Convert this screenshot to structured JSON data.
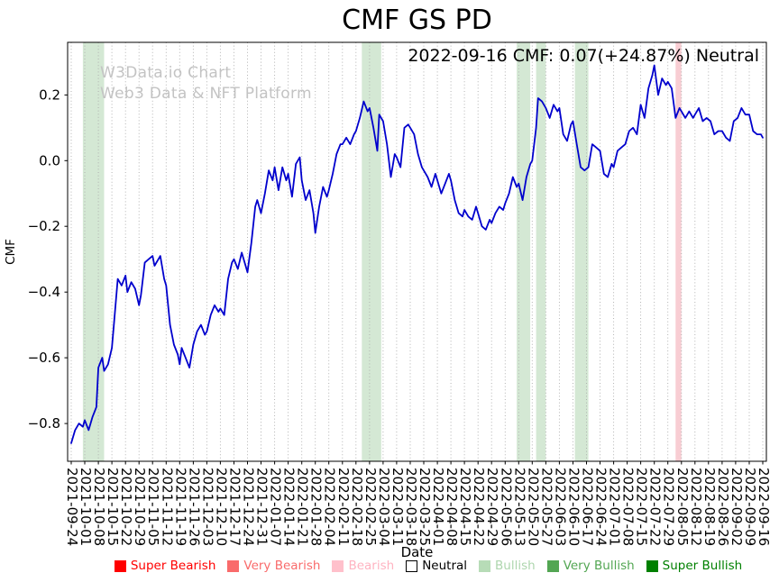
{
  "title": "CMF GS PD",
  "annotation": {
    "text": "2022-09-16 CMF: 0.07(+24.87%) Neutral"
  },
  "watermark": {
    "line1": "W3Data.io Chart",
    "line2": "Web3 Data & NFT Platform"
  },
  "chart_data": {
    "type": "line",
    "title": "CMF GS PD",
    "xlabel": "Date",
    "ylabel": "CMF",
    "x_start": "2021-09-24",
    "x_end": "2022-09-16",
    "x_range_days": 357,
    "x_tick_interval_days": 7,
    "ylim": [
      -0.915,
      0.36
    ],
    "yticks": [
      0.2,
      0.0,
      -0.2,
      -0.4,
      -0.6,
      -0.8
    ],
    "ytick_labels": [
      "0.2",
      "0.0",
      "−0.2",
      "−0.4",
      "−0.6",
      "−0.8"
    ],
    "grid": {
      "vertical": true,
      "style": "dotted",
      "color": "#ababab"
    },
    "line": {
      "name": "CMF",
      "color": "#0000cd",
      "width": 1.8
    },
    "x_tick_dates": [
      "2021-09-24",
      "2021-10-01",
      "2021-10-08",
      "2021-10-15",
      "2021-10-22",
      "2021-10-29",
      "2021-11-05",
      "2021-11-12",
      "2021-11-19",
      "2021-11-26",
      "2021-12-03",
      "2021-12-10",
      "2021-12-17",
      "2021-12-24",
      "2021-12-31",
      "2022-01-07",
      "2022-01-14",
      "2022-01-21",
      "2022-01-28",
      "2022-02-04",
      "2022-02-11",
      "2022-02-18",
      "2022-02-25",
      "2022-03-04",
      "2022-03-11",
      "2022-03-18",
      "2022-03-25",
      "2022-04-01",
      "2022-04-08",
      "2022-04-15",
      "2022-04-22",
      "2022-04-29",
      "2022-05-06",
      "2022-05-13",
      "2022-05-20",
      "2022-05-27",
      "2022-06-03",
      "2022-06-10",
      "2022-06-17",
      "2022-06-24",
      "2022-07-01",
      "2022-07-08",
      "2022-07-15",
      "2022-07-22",
      "2022-07-29",
      "2022-08-05",
      "2022-08-12",
      "2022-08-19",
      "2022-08-26",
      "2022-09-02",
      "2022-09-09",
      "2022-09-16"
    ],
    "points": [
      [
        0,
        -0.86
      ],
      [
        2,
        -0.82
      ],
      [
        4,
        -0.8
      ],
      [
        6,
        -0.81
      ],
      [
        7,
        -0.79
      ],
      [
        9,
        -0.82
      ],
      [
        11,
        -0.78
      ],
      [
        13,
        -0.75
      ],
      [
        14,
        -0.63
      ],
      [
        16,
        -0.6
      ],
      [
        17,
        -0.64
      ],
      [
        19,
        -0.62
      ],
      [
        21,
        -0.57
      ],
      [
        22,
        -0.5
      ],
      [
        24,
        -0.36
      ],
      [
        26,
        -0.38
      ],
      [
        28,
        -0.35
      ],
      [
        29,
        -0.4
      ],
      [
        31,
        -0.37
      ],
      [
        33,
        -0.39
      ],
      [
        35,
        -0.44
      ],
      [
        36,
        -0.41
      ],
      [
        38,
        -0.31
      ],
      [
        40,
        -0.3
      ],
      [
        42,
        -0.29
      ],
      [
        43,
        -0.32
      ],
      [
        45,
        -0.3
      ],
      [
        46,
        -0.29
      ],
      [
        48,
        -0.36
      ],
      [
        49,
        -0.38
      ],
      [
        51,
        -0.5
      ],
      [
        53,
        -0.56
      ],
      [
        55,
        -0.59
      ],
      [
        56,
        -0.62
      ],
      [
        57,
        -0.57
      ],
      [
        59,
        -0.6
      ],
      [
        61,
        -0.63
      ],
      [
        63,
        -0.56
      ],
      [
        65,
        -0.52
      ],
      [
        67,
        -0.5
      ],
      [
        69,
        -0.53
      ],
      [
        70,
        -0.52
      ],
      [
        72,
        -0.47
      ],
      [
        74,
        -0.44
      ],
      [
        76,
        -0.46
      ],
      [
        77,
        -0.45
      ],
      [
        79,
        -0.47
      ],
      [
        81,
        -0.36
      ],
      [
        83,
        -0.31
      ],
      [
        84,
        -0.3
      ],
      [
        86,
        -0.33
      ],
      [
        88,
        -0.28
      ],
      [
        90,
        -0.32
      ],
      [
        91,
        -0.34
      ],
      [
        93,
        -0.25
      ],
      [
        95,
        -0.14
      ],
      [
        96,
        -0.12
      ],
      [
        98,
        -0.16
      ],
      [
        100,
        -0.1
      ],
      [
        102,
        -0.03
      ],
      [
        104,
        -0.06
      ],
      [
        105,
        -0.02
      ],
      [
        107,
        -0.09
      ],
      [
        109,
        -0.02
      ],
      [
        111,
        -0.06
      ],
      [
        112,
        -0.04
      ],
      [
        114,
        -0.11
      ],
      [
        116,
        -0.01
      ],
      [
        118,
        0.01
      ],
      [
        119,
        -0.06
      ],
      [
        121,
        -0.12
      ],
      [
        123,
        -0.09
      ],
      [
        125,
        -0.16
      ],
      [
        126,
        -0.22
      ],
      [
        128,
        -0.14
      ],
      [
        130,
        -0.08
      ],
      [
        132,
        -0.11
      ],
      [
        133,
        -0.09
      ],
      [
        135,
        -0.04
      ],
      [
        137,
        0.02
      ],
      [
        139,
        0.05
      ],
      [
        140,
        0.05
      ],
      [
        142,
        0.07
      ],
      [
        144,
        0.05
      ],
      [
        146,
        0.08
      ],
      [
        147,
        0.09
      ],
      [
        149,
        0.13
      ],
      [
        151,
        0.18
      ],
      [
        153,
        0.15
      ],
      [
        154,
        0.16
      ],
      [
        156,
        0.1
      ],
      [
        158,
        0.03
      ],
      [
        159,
        0.14
      ],
      [
        161,
        0.12
      ],
      [
        163,
        0.05
      ],
      [
        165,
        -0.05
      ],
      [
        167,
        0.02
      ],
      [
        168,
        0.01
      ],
      [
        170,
        -0.02
      ],
      [
        172,
        0.1
      ],
      [
        174,
        0.11
      ],
      [
        175,
        0.1
      ],
      [
        177,
        0.08
      ],
      [
        179,
        0.02
      ],
      [
        181,
        -0.02
      ],
      [
        182,
        -0.03
      ],
      [
        184,
        -0.05
      ],
      [
        186,
        -0.08
      ],
      [
        188,
        -0.04
      ],
      [
        189,
        -0.06
      ],
      [
        191,
        -0.1
      ],
      [
        193,
        -0.07
      ],
      [
        195,
        -0.04
      ],
      [
        196,
        -0.06
      ],
      [
        198,
        -0.12
      ],
      [
        200,
        -0.16
      ],
      [
        202,
        -0.17
      ],
      [
        203,
        -0.15
      ],
      [
        205,
        -0.17
      ],
      [
        207,
        -0.18
      ],
      [
        209,
        -0.14
      ],
      [
        210,
        -0.16
      ],
      [
        212,
        -0.2
      ],
      [
        214,
        -0.21
      ],
      [
        216,
        -0.18
      ],
      [
        217,
        -0.19
      ],
      [
        219,
        -0.16
      ],
      [
        221,
        -0.14
      ],
      [
        223,
        -0.15
      ],
      [
        224,
        -0.13
      ],
      [
        226,
        -0.1
      ],
      [
        228,
        -0.05
      ],
      [
        230,
        -0.08
      ],
      [
        231,
        -0.07
      ],
      [
        233,
        -0.12
      ],
      [
        235,
        -0.05
      ],
      [
        237,
        -0.01
      ],
      [
        238,
        0
      ],
      [
        240,
        0.1
      ],
      [
        241,
        0.19
      ],
      [
        243,
        0.18
      ],
      [
        245,
        0.16
      ],
      [
        247,
        0.13
      ],
      [
        249,
        0.17
      ],
      [
        251,
        0.15
      ],
      [
        252,
        0.16
      ],
      [
        254,
        0.08
      ],
      [
        256,
        0.06
      ],
      [
        258,
        0.11
      ],
      [
        259,
        0.12
      ],
      [
        261,
        0.05
      ],
      [
        263,
        -0.02
      ],
      [
        265,
        -0.03
      ],
      [
        267,
        -0.02
      ],
      [
        269,
        0.05
      ],
      [
        271,
        0.04
      ],
      [
        273,
        0.03
      ],
      [
        275,
        -0.04
      ],
      [
        277,
        -0.05
      ],
      [
        279,
        -0.01
      ],
      [
        280,
        -0.02
      ],
      [
        282,
        0.03
      ],
      [
        284,
        0.04
      ],
      [
        286,
        0.05
      ],
      [
        288,
        0.09
      ],
      [
        290,
        0.1
      ],
      [
        292,
        0.08
      ],
      [
        294,
        0.17
      ],
      [
        296,
        0.13
      ],
      [
        298,
        0.22
      ],
      [
        300,
        0.26
      ],
      [
        301,
        0.29
      ],
      [
        303,
        0.2
      ],
      [
        305,
        0.25
      ],
      [
        307,
        0.23
      ],
      [
        308,
        0.24
      ],
      [
        310,
        0.22
      ],
      [
        312,
        0.13
      ],
      [
        314,
        0.16
      ],
      [
        315,
        0.15
      ],
      [
        317,
        0.13
      ],
      [
        319,
        0.15
      ],
      [
        321,
        0.13
      ],
      [
        322,
        0.14
      ],
      [
        324,
        0.16
      ],
      [
        326,
        0.12
      ],
      [
        328,
        0.13
      ],
      [
        330,
        0.12
      ],
      [
        332,
        0.08
      ],
      [
        334,
        0.09
      ],
      [
        336,
        0.09
      ],
      [
        338,
        0.07
      ],
      [
        340,
        0.06
      ],
      [
        342,
        0.12
      ],
      [
        344,
        0.13
      ],
      [
        346,
        0.16
      ],
      [
        348,
        0.14
      ],
      [
        350,
        0.14
      ],
      [
        352,
        0.09
      ],
      [
        354,
        0.08
      ],
      [
        356,
        0.08
      ],
      [
        357,
        0.07
      ]
    ],
    "bands": [
      {
        "start_day": 6,
        "end_day": 17,
        "start_date": "2021-09-30",
        "end_date": "2021-10-11",
        "sentiment": "Bullish",
        "color": "#d4e8d4"
      },
      {
        "start_day": 150,
        "end_day": 160,
        "start_date": "2022-02-21",
        "end_date": "2022-03-03",
        "sentiment": "Bullish",
        "color": "#d4e8d4"
      },
      {
        "start_day": 230,
        "end_day": 237,
        "start_date": "2022-05-12",
        "end_date": "2022-05-19",
        "sentiment": "Bullish",
        "color": "#d4e8d4"
      },
      {
        "start_day": 240,
        "end_day": 245,
        "start_date": "2022-05-22",
        "end_date": "2022-05-27",
        "sentiment": "Bullish",
        "color": "#d4e8d4"
      },
      {
        "start_day": 260,
        "end_day": 267,
        "start_date": "2022-06-11",
        "end_date": "2022-06-18",
        "sentiment": "Bullish",
        "color": "#d4e8d4"
      },
      {
        "start_day": 312,
        "end_day": 315,
        "start_date": "2022-08-02",
        "end_date": "2022-08-05",
        "sentiment": "Bearish",
        "color": "#f8cdd3"
      }
    ],
    "last_point": {
      "date": "2022-09-16",
      "value": 0.07,
      "change_pct": "+24.87%",
      "sentiment": "Neutral"
    }
  },
  "legend": {
    "items": [
      {
        "label": "Super Bearish",
        "color": "#ff0000",
        "text_color": "#ff0000"
      },
      {
        "label": "Very Bearish",
        "color": "#f96b6b",
        "text_color": "#f96b6b"
      },
      {
        "label": "Bearish",
        "color": "#ffc0cb",
        "text_color": "#ffb3c1"
      },
      {
        "label": "Neutral",
        "color": "#ffffff",
        "text_color": "#000000"
      },
      {
        "label": "Bullish",
        "color": "#b7dcb7",
        "text_color": "#aed6ae"
      },
      {
        "label": "Very Bullish",
        "color": "#53a653",
        "text_color": "#53a653"
      },
      {
        "label": "Super Bullish",
        "color": "#008000",
        "text_color": "#008000"
      }
    ]
  }
}
